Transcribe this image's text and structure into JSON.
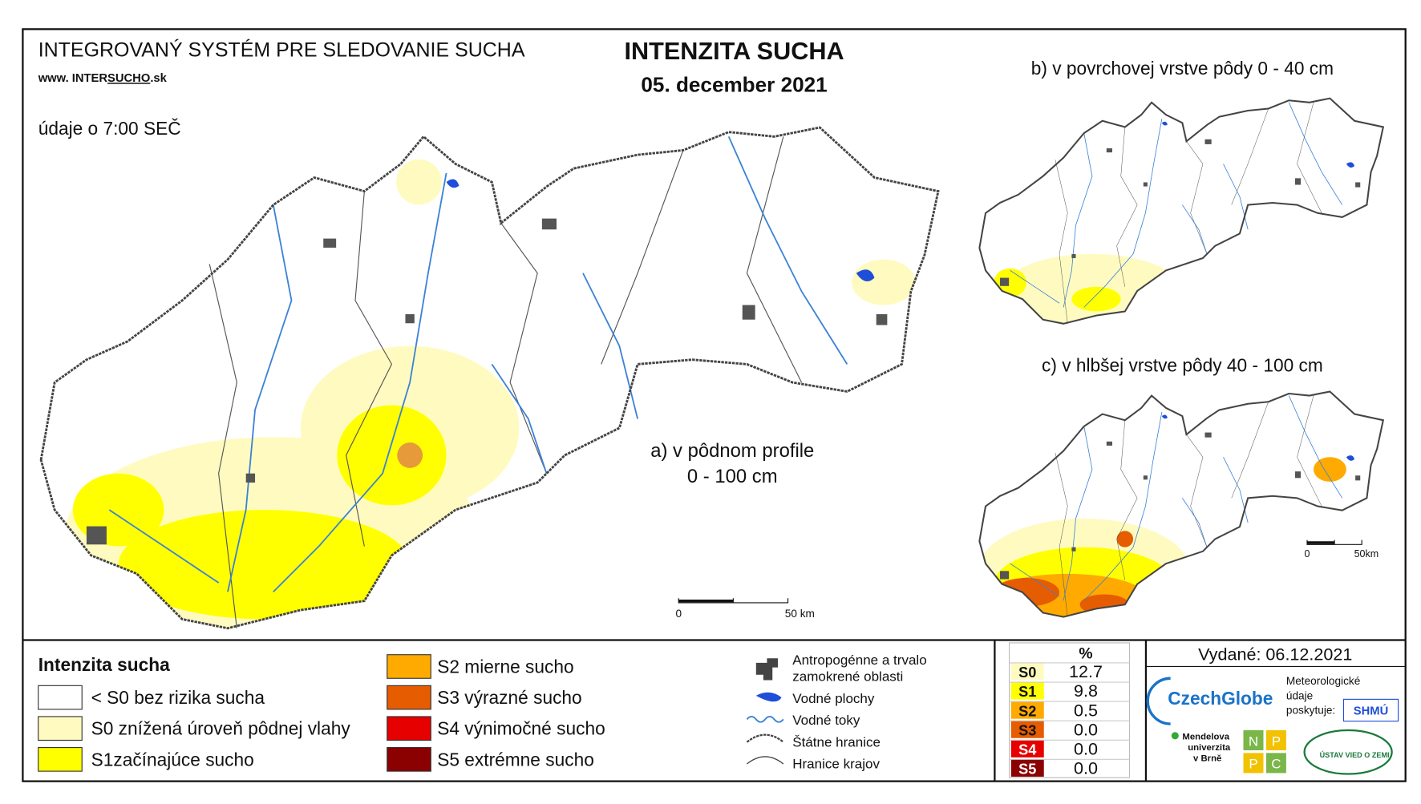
{
  "header": {
    "system": "INTEGROVANÝ SYSTÉM PRE SLEDOVANIE SUCHA",
    "web_prefix": "www. INTER",
    "web_highlight": "SUCHO",
    "web_suffix": ".sk",
    "data_time": "údaje o 7:00 SEČ"
  },
  "title": {
    "main": "INTENZITA SUCHA",
    "date": "05. december 2021"
  },
  "maps": [
    {
      "label_line1": "a) v pôdnom profile",
      "label_line2": "0 - 100 cm",
      "scale_start": "0",
      "scale_end": "50 km"
    },
    {
      "label": "b) v povrchovej vrstve pôdy 0 - 40 cm"
    },
    {
      "label": "c) v hlbšej vrstve pôdy 40 - 100 cm",
      "scale_start": "0",
      "scale_end": "50km"
    }
  ],
  "legend": {
    "title": "Intenzita sucha",
    "classes": [
      {
        "label": "< S0 bez rizika sucha",
        "color": "#ffffff"
      },
      {
        "label": "S0 znížená úroveň pôdnej vlahy",
        "color": "#fffbc0"
      },
      {
        "label": "S1začínajúce sucho",
        "color": "#ffff00"
      },
      {
        "label": "S2 mierne sucho",
        "color": "#ffaa00"
      },
      {
        "label": "S3 výrazné sucho",
        "color": "#e65c00"
      },
      {
        "label": "S4 výnimočné sucho",
        "color": "#e60000"
      },
      {
        "label": "S5 extrémne sucho",
        "color": "#8b0000"
      }
    ]
  },
  "symbols": [
    "Antropogénne a trvalo",
    "zamokrené oblasti",
    "Vodné plochy",
    "Vodné toky",
    "Štátne hranice",
    "Hranice krajov"
  ],
  "stats": {
    "header": "%",
    "rows": [
      {
        "class": "S0",
        "value": "12.7",
        "color": "#fffbc0"
      },
      {
        "class": "S1",
        "value": "9.8",
        "color": "#ffff00"
      },
      {
        "class": "S2",
        "value": "0.5",
        "color": "#ffaa00"
      },
      {
        "class": "S3",
        "value": "0.0",
        "color": "#e65c00"
      },
      {
        "class": "S4",
        "value": "0.0",
        "color": "#e60000"
      },
      {
        "class": "S5",
        "value": "0.0",
        "color": "#8b0000"
      }
    ]
  },
  "issued": "Vydané: 06.12.2021",
  "logos": {
    "czechglobe": "CzechGlobe",
    "met_line1": "Meteorologické",
    "met_line2": "údaje",
    "met_line3": "poskytuje:",
    "shmu": "SHMÚ",
    "mendel_line1": "Mendelova",
    "mendel_line2": "univerzita",
    "mendel_line3": "v Brně",
    "npc": [
      "N",
      "P",
      "P",
      "C"
    ],
    "ustav": "ÚSTAV VIED O ZEMI"
  }
}
